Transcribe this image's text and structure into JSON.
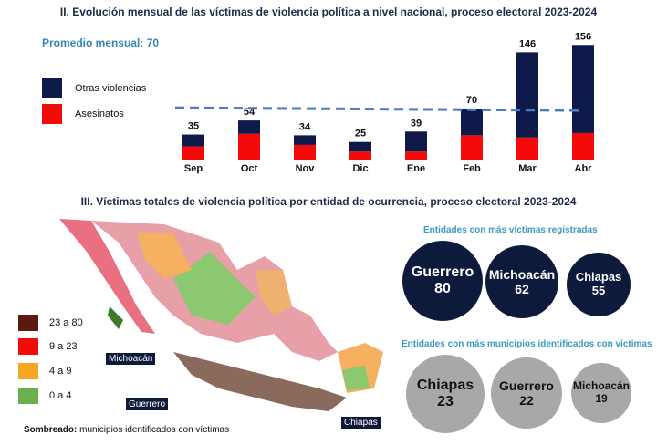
{
  "title1": "II. Evolución mensual de las víctimas de violencia política a nivel nacional, proceso electoral 2023-2024",
  "average_label": "Promedio mensual: 70",
  "legend": [
    {
      "label": "Otras violencias",
      "color": "#0d1a4a"
    },
    {
      "label": "Asesinatos",
      "color": "#f50a0a"
    }
  ],
  "chart_data": {
    "type": "bar",
    "stacked": true,
    "title": "II. Evolución mensual de las víctimas de violencia política a nivel nacional, proceso electoral 2023-2024",
    "categories": [
      "Sep",
      "Oct",
      "Nov",
      "Dic",
      "Ene",
      "Feb",
      "Mar",
      "Abr"
    ],
    "totals": [
      35,
      54,
      34,
      25,
      39,
      70,
      146,
      156
    ],
    "series": [
      {
        "name": "Asesinatos",
        "values": [
          19,
          36,
          21,
          12,
          12,
          34,
          31,
          37
        ],
        "color": "#f50a0a"
      },
      {
        "name": "Otras violencias",
        "values": [
          16,
          18,
          13,
          13,
          27,
          36,
          115,
          119
        ],
        "color": "#0d1a4a"
      }
    ],
    "reference_line": {
      "label": "Promedio mensual",
      "value": 70,
      "color": "#4a7cc4"
    },
    "ylim": [
      0,
      160
    ]
  },
  "title2": "III. Víctimas totales de violencia política por entidad de ocurrencia, proceso electoral 2023-2024",
  "map_legend": [
    {
      "label": "23 a 80",
      "color": "#5a1a0e"
    },
    {
      "label": "9 a 23",
      "color": "#f50a0a"
    },
    {
      "label": "4 a 9",
      "color": "#f5a623"
    },
    {
      "label": "0 a 4",
      "color": "#6ab04c"
    }
  ],
  "map_tags": {
    "michoacan": "Michoacán",
    "guerrero": "Guerrero",
    "chiapas": "Chiapas"
  },
  "note_bold": "Sombreado:",
  "note": " municipios identificados con víctimas",
  "victims_title": "Entidades con más víctimas registradas",
  "victims": [
    {
      "name": "Guerrero",
      "value": "80"
    },
    {
      "name": "Michoacán",
      "value": "62"
    },
    {
      "name": "Chiapas",
      "value": "55"
    }
  ],
  "munis_title": "Entidades con más municipios identificados con víctimas",
  "munis": [
    {
      "name": "Chiapas",
      "value": "23"
    },
    {
      "name": "Guerrero",
      "value": "22"
    },
    {
      "name": "Michoacán",
      "value": "19"
    }
  ]
}
